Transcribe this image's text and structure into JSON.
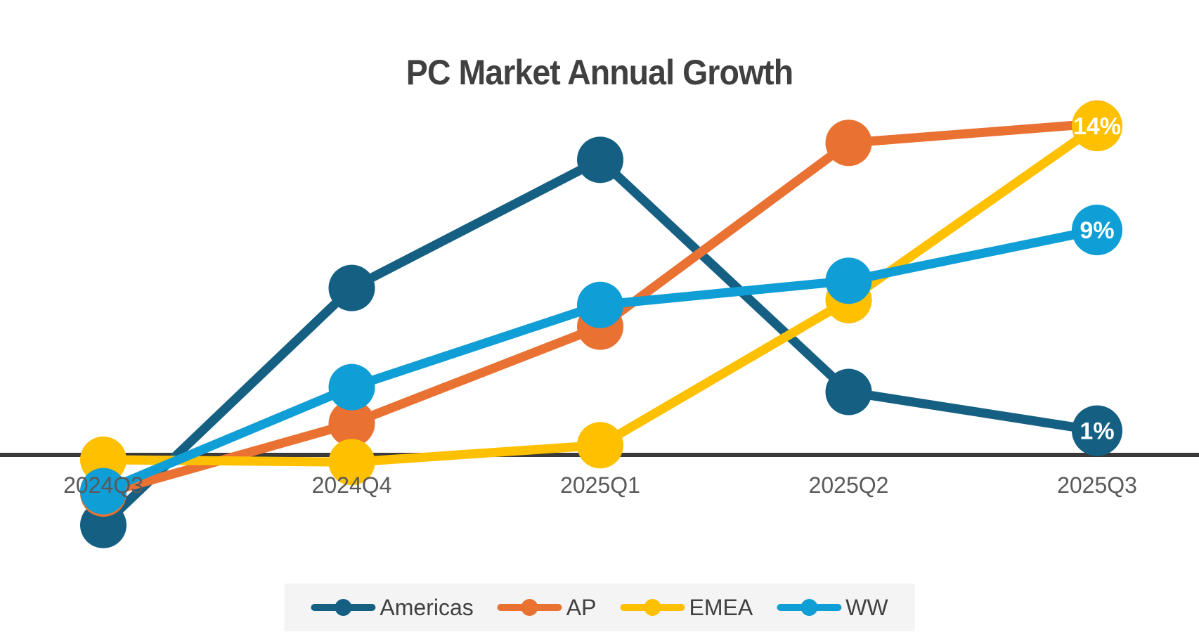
{
  "title": "PC Market Annual Growth",
  "colors": {
    "americas": "#156082",
    "ap": "#E97132",
    "emea": "#FFC000",
    "ww": "#0F9ED5",
    "axis_line": "#3A3A3A",
    "title_text": "#404040",
    "tick_text": "#595959",
    "legend_bg": "#F4F4F4",
    "data_label_text": "#FFFFFF"
  },
  "chart_data": {
    "type": "line",
    "title": "PC Market Annual Growth",
    "categories": [
      "2024Q3",
      "2024Q4",
      "2025Q1",
      "2025Q2",
      "2025Q3"
    ],
    "series": [
      {
        "name": "Americas",
        "color": "#156082",
        "values": [
          -2.9,
          6.9,
          12.2,
          2.6,
          1.0
        ],
        "end_label": "1%"
      },
      {
        "name": "AP",
        "color": "#E97132",
        "values": [
          -1.6,
          1.3,
          5.3,
          12.9,
          13.7
        ],
        "end_label": null
      },
      {
        "name": "EMEA",
        "color": "#FFC000",
        "values": [
          -0.2,
          -0.3,
          0.4,
          6.4,
          13.6
        ],
        "end_label": "14%"
      },
      {
        "name": "WW",
        "color": "#0F9ED5",
        "values": [
          -1.5,
          2.8,
          6.2,
          7.2,
          9.3
        ],
        "end_label": "9%"
      }
    ],
    "ylim": [
      -3.5,
      15.5
    ],
    "grid": false,
    "y_axis_ticks": "none",
    "baseline_value": 0,
    "legend_position": "bottom",
    "value_format": "percent"
  },
  "legend": {
    "items": [
      {
        "label": "Americas",
        "color": "#156082"
      },
      {
        "label": "AP",
        "color": "#E97132"
      },
      {
        "label": "EMEA",
        "color": "#FFC000"
      },
      {
        "label": "WW",
        "color": "#0F9ED5"
      }
    ]
  }
}
